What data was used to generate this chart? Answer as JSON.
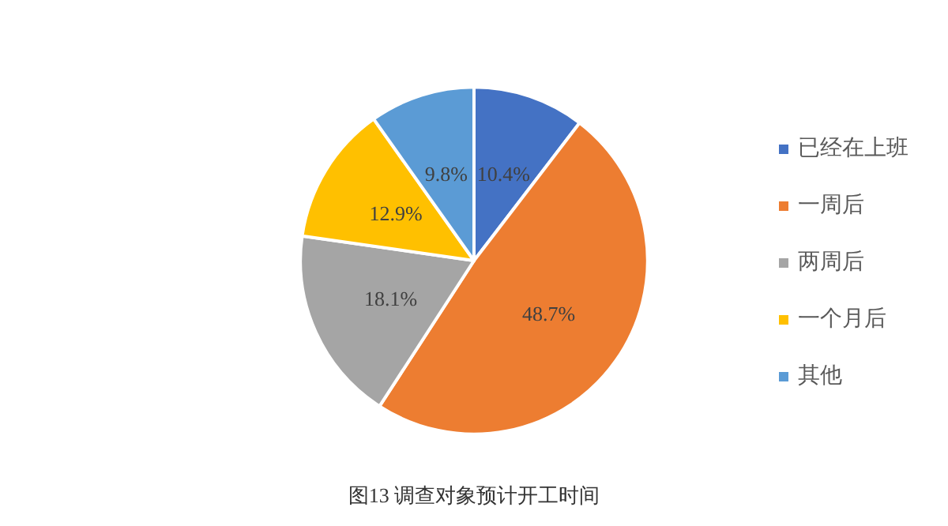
{
  "chart_data": {
    "type": "pie",
    "title": "图13 调查对象预计开工时间",
    "categories": [
      "已经在上班",
      "一周后",
      "两周后",
      "一个月后",
      "其他"
    ],
    "values": [
      10.4,
      48.7,
      18.1,
      12.9,
      9.8
    ],
    "value_labels": [
      "10.4%",
      "48.7%",
      "18.1%",
      "12.9%",
      "9.8%"
    ],
    "colors": [
      "#4472c4",
      "#ed7d31",
      "#a5a5a5",
      "#ffc000",
      "#5b9bd5"
    ],
    "legend": "right"
  }
}
